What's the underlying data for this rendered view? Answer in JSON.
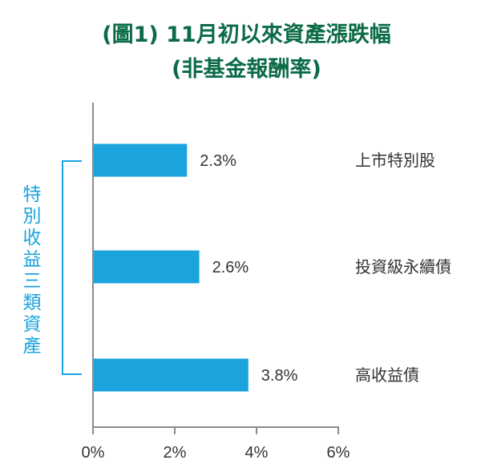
{
  "colors": {
    "title": "#0b6b47",
    "bar": "#1aa3dd",
    "axis": "#8c8c8c",
    "text": "#333333",
    "bracket": "#1aa3dd"
  },
  "title": {
    "line1": "(圖1) 11月初以來資產漲跌幅",
    "line2": "(非基金報酬率)"
  },
  "bracket": {
    "label": "特別收益三類資產"
  },
  "chart_data": {
    "type": "bar",
    "orientation": "horizontal",
    "categories": [
      "上市特別股",
      "投資級永續債",
      "高收益債"
    ],
    "values": [
      2.3,
      2.6,
      3.8
    ],
    "value_labels": [
      "2.3%",
      "2.6%",
      "3.8%"
    ],
    "xlim": [
      0,
      6
    ],
    "xticks": [
      0,
      2,
      4,
      6
    ],
    "tick_suffix": "%",
    "grid": false,
    "legend": "none"
  }
}
